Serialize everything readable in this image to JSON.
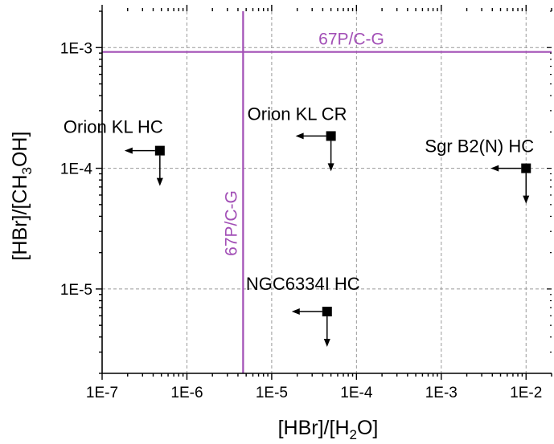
{
  "chart_data": {
    "type": "scatter",
    "x_scale": "log",
    "y_scale": "log",
    "xlim": [
      1e-07,
      0.02
    ],
    "ylim": [
      2e-06,
      0.002
    ],
    "grid": true,
    "x_ticks": [
      {
        "value": 1e-07,
        "label": "1E-7"
      },
      {
        "value": 1e-06,
        "label": "1E-6"
      },
      {
        "value": 1e-05,
        "label": "1E-5"
      },
      {
        "value": 0.0001,
        "label": "1E-4"
      },
      {
        "value": 0.001,
        "label": "1E-3"
      },
      {
        "value": 0.01,
        "label": "1E-2"
      }
    ],
    "y_ticks": [
      {
        "value": 1e-05,
        "label": "1E-5"
      },
      {
        "value": 0.0001,
        "label": "1E-4"
      },
      {
        "value": 0.001,
        "label": "1E-3"
      }
    ],
    "xlabel": {
      "pre": "[HBr]/[H",
      "sub": "2",
      "post": "O]"
    },
    "ylabel": {
      "pre": "[HBr]/[CH",
      "sub": "3",
      "post": "OH]"
    },
    "points": [
      {
        "name": "Orion KL HC",
        "x": 4.8e-07,
        "y": 0.00014,
        "upper_limit": true
      },
      {
        "name": "Orion KL CR",
        "x": 5e-05,
        "y": 0.000185,
        "upper_limit": true
      },
      {
        "name": "Sgr B2(N) HC",
        "x": 0.01,
        "y": 0.0001,
        "upper_limit": true
      },
      {
        "name": "NGC6334I HC",
        "x": 4.5e-05,
        "y": 6.5e-06,
        "upper_limit": true
      }
    ],
    "reference_lines": [
      {
        "label": "67P/C-G",
        "orientation": "horizontal",
        "value": 0.00092
      },
      {
        "label": "67P/C-G",
        "orientation": "vertical",
        "value": 4.6e-06
      }
    ],
    "colors": {
      "reference": "#a24fb6",
      "marker": "#000000",
      "grid": "#9a9a9a"
    }
  }
}
